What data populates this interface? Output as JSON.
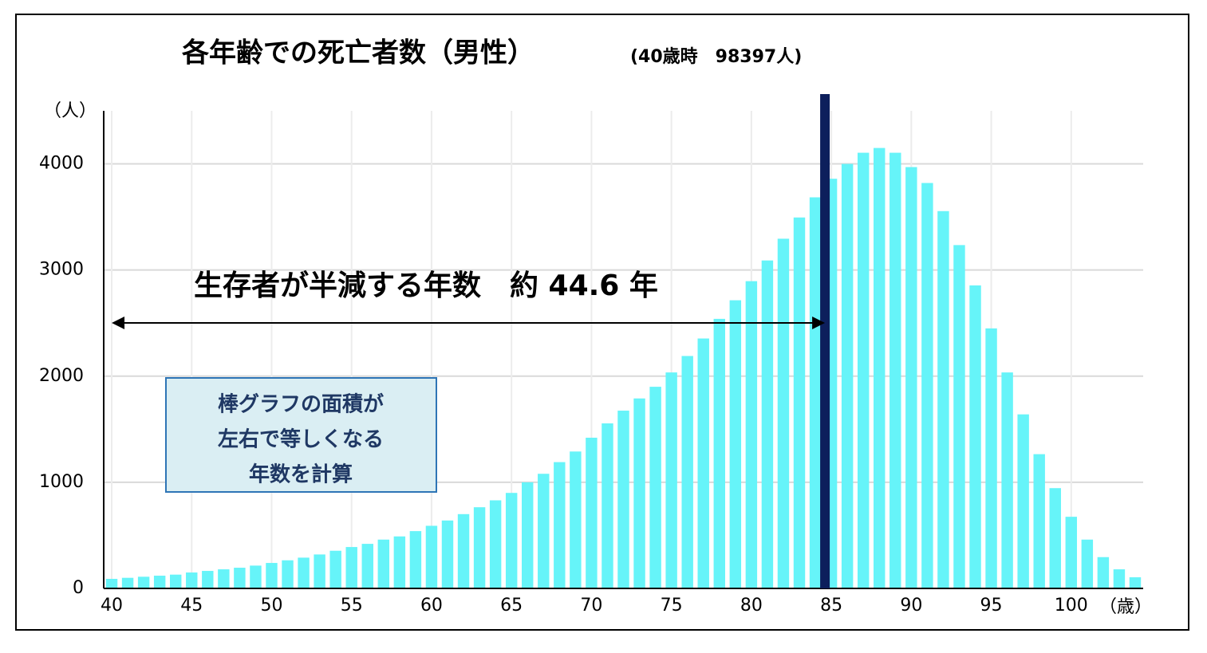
{
  "chart_data": {
    "type": "bar",
    "title": "各年齢での死亡者数（男性）",
    "subtitle": "(40歳時　98397人)",
    "y_label": "（人）",
    "x_label": "（歳）",
    "x": [
      40,
      41,
      42,
      43,
      44,
      45,
      46,
      47,
      48,
      49,
      50,
      51,
      52,
      53,
      54,
      55,
      56,
      57,
      58,
      59,
      60,
      61,
      62,
      63,
      64,
      65,
      66,
      67,
      68,
      69,
      70,
      71,
      72,
      73,
      74,
      75,
      76,
      77,
      78,
      79,
      80,
      81,
      82,
      83,
      84,
      85,
      86,
      87,
      88,
      89,
      90,
      91,
      92,
      93,
      94,
      95,
      96,
      97,
      98,
      99,
      100,
      101,
      102,
      103,
      104
    ],
    "values": [
      90,
      100,
      110,
      120,
      130,
      150,
      165,
      180,
      195,
      215,
      240,
      265,
      290,
      320,
      355,
      390,
      420,
      460,
      490,
      540,
      590,
      640,
      700,
      765,
      830,
      900,
      1000,
      1080,
      1190,
      1290,
      1420,
      1555,
      1675,
      1790,
      1900,
      2035,
      2190,
      2355,
      2540,
      2715,
      2895,
      3090,
      3295,
      3495,
      3685,
      3860,
      4000,
      4105,
      4150,
      4105,
      3970,
      3820,
      3555,
      3235,
      2855,
      2450,
      2035,
      1640,
      1265,
      945,
      675,
      460,
      295,
      180,
      105
    ],
    "color": "#66f4f9",
    "xlim": [
      39.5,
      104.5
    ],
    "xticks": [
      40,
      45,
      50,
      55,
      60,
      65,
      70,
      75,
      80,
      85,
      90,
      95,
      100
    ],
    "ylim": [
      0,
      4500
    ],
    "yticks": [
      0,
      1000,
      2000,
      3000,
      4000
    ],
    "grid": true,
    "median_line": {
      "value": 84.6,
      "color": "#0d1f5c"
    },
    "annotation": {
      "text": "生存者が半減する年数　約 44.6 年",
      "from": 40,
      "to": 84.6
    },
    "note": [
      "棒グラフの面積が",
      "左右で等しくなる",
      "年数を計算"
    ]
  }
}
